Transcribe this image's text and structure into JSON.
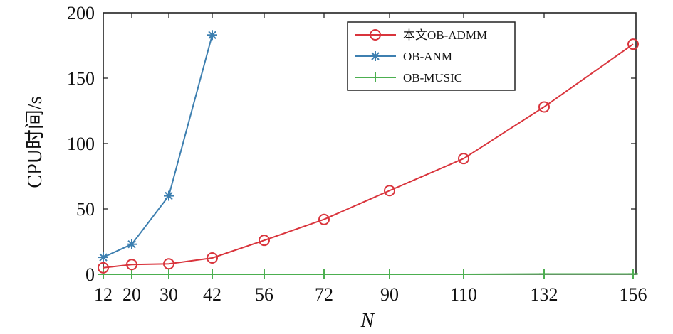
{
  "chart_data": {
    "type": "line",
    "xlabel": "N",
    "ylabel": "CPU时间/s",
    "categories": [
      "12",
      "20",
      "30",
      "42",
      "56",
      "72",
      "90",
      "110",
      "132",
      "156"
    ],
    "x": [
      12,
      20,
      30,
      42,
      56,
      72,
      90,
      110,
      132,
      156
    ],
    "ylim": [
      0,
      200
    ],
    "yticks": [
      0,
      50,
      100,
      150,
      200
    ],
    "grid": false,
    "legend_position": "top-right",
    "series": [
      {
        "name": "本文OB-ADMM",
        "color": "#d9343c",
        "marker": "circle",
        "values": [
          5,
          7.5,
          8,
          12.5,
          26,
          42,
          64,
          88.5,
          128,
          176
        ]
      },
      {
        "name": "OB-ANM",
        "color": "#3d7fb0",
        "marker": "asterisk",
        "values": [
          13,
          23,
          60,
          183,
          null,
          null,
          null,
          null,
          null,
          null
        ]
      },
      {
        "name": "OB-MUSIC",
        "color": "#4caf50",
        "marker": "plus",
        "values": [
          0,
          0,
          0,
          0,
          0,
          0,
          0,
          0,
          0.3,
          0.3
        ]
      }
    ]
  }
}
